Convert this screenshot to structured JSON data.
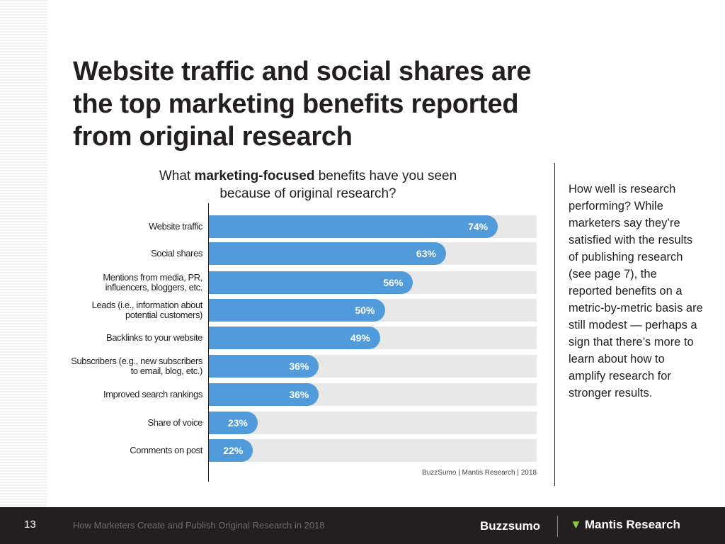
{
  "title": "Website traffic and social shares are the top marketing benefits reported from original research",
  "chart_data": {
    "type": "bar",
    "orientation": "horizontal",
    "title_pre": "What ",
    "title_bold": "marketing-focused",
    "title_post": " benefits have you seen because of original research?",
    "categories": [
      "Website traffic",
      "Social shares",
      "Mentions from media, PR,\ninfluencers, bloggers, etc.",
      "Leads (i.e., information about\npotential customers)",
      "Backlinks to your website",
      "Subscribers (e.g., new subscribers\nto email, blog, etc.)",
      "Improved search rankings",
      "Share of voice",
      "Comments on post"
    ],
    "values": [
      74,
      63,
      56,
      50,
      49,
      36,
      36,
      23,
      22
    ],
    "value_labels": [
      "74%",
      "63%",
      "56%",
      "50%",
      "49%",
      "36%",
      "36%",
      "23%",
      "22%"
    ],
    "unit": "%",
    "source": "BuzzSumo | Mantis Research | 2018",
    "colors": {
      "bar": "#519bdb",
      "track": "#e8e8e8"
    }
  },
  "sidebar_text": "How well is research performing? While marketers say they’re satisfied with the results of publishing research (see page 7), the reported benefits on a metric-by-metric basis are still modest — perhaps a sign that there’s more to learn about how to amplify research for stronger results.",
  "footer": {
    "page": "13",
    "title": "How Marketers Create and Publish Original Research in 2018",
    "logo1": "Buzzsumo",
    "logo2": "Mantis Research"
  }
}
